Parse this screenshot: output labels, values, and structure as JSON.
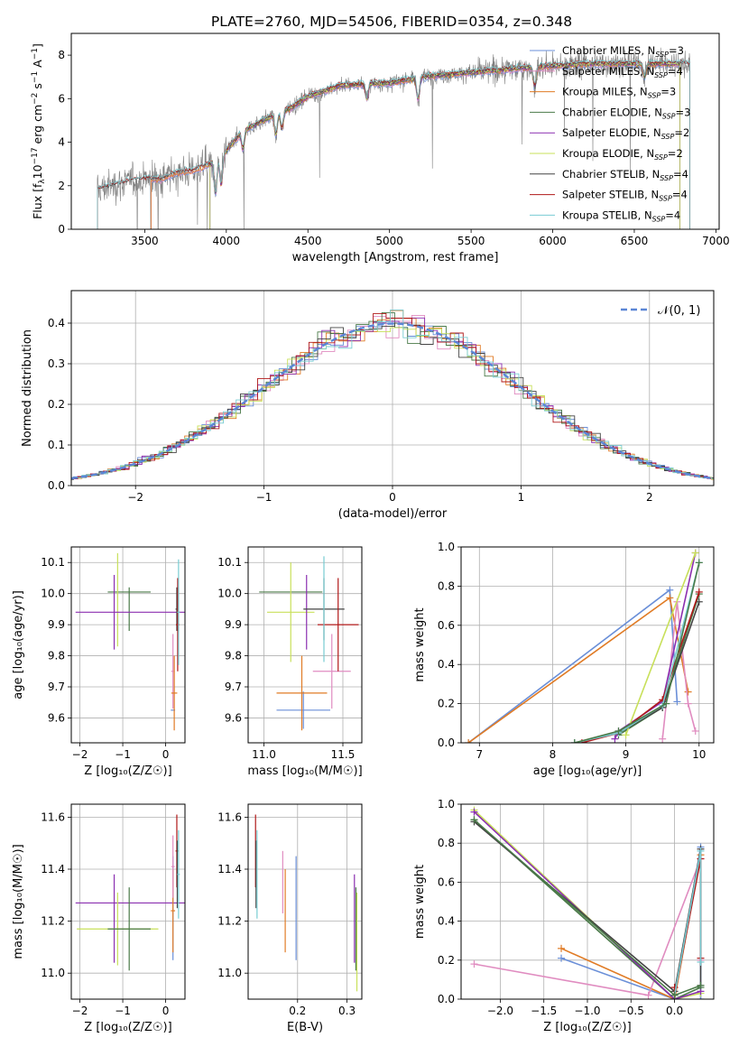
{
  "figure_title": "PLATE=2760, MJD=54506, FIBERID=0354, z=0.348",
  "colors": {
    "Chabrier MILES": "#6a8fd8",
    "Salpeter MILES": "#e08cc0",
    "Kroupa MILES": "#e07b25",
    "Chabrier ELODIE": "#4a7a48",
    "Salpeter ELODIE": "#8b2fb0",
    "Kroupa ELODIE": "#c8e05a",
    "Chabrier STELIB": "#444444",
    "Salpeter STELIB": "#b01818",
    "Kroupa STELIB": "#78ccd2",
    "data": "#808080",
    "normal": "#5b86d6"
  },
  "chart_data": [
    {
      "id": "spectrum",
      "type": "line",
      "title": "PLATE=2760, MJD=54506, FIBERID=0354, z=0.348",
      "xlabel": "wavelength [Angstrom, rest frame]",
      "ylabel": "Flux [f$_\\lambda 10^{-17}$ erg cm$^{-2}$ s$^{-1}$ A$^{-1}$]",
      "ylabel_parts": {
        "a": "Flux [f",
        "b": "λ",
        "c": "10",
        "d": "−17",
        "e": " erg cm",
        "f": "−2",
        "g": " s",
        "h": "−1",
        "i": " A",
        "j": "−1",
        "k": "]"
      },
      "xlim": [
        3050,
        7020
      ],
      "ylim": [
        0,
        9
      ],
      "xticks": [
        3500,
        4000,
        4500,
        5000,
        5500,
        6000,
        6500,
        7000
      ],
      "xtick_labels": [
        "3500",
        "4000",
        "4500",
        "5000",
        "5500",
        "6000",
        "6500",
        "7000"
      ],
      "yticks": [
        0,
        2,
        4,
        6,
        8
      ],
      "ytick_labels": [
        "0",
        "2",
        "4",
        "6",
        "8"
      ],
      "legend": [
        {
          "name": "Chabrier MILES",
          "n": "3"
        },
        {
          "name": "Salpeter MILES",
          "n": "4"
        },
        {
          "name": "Kroupa MILES",
          "n": "3"
        },
        {
          "name": "Chabrier ELODIE",
          "n": "3"
        },
        {
          "name": "Salpeter ELODIE",
          "n": "2"
        },
        {
          "name": "Kroupa ELODIE",
          "n": "2"
        },
        {
          "name": "Chabrier STELIB",
          "n": "4"
        },
        {
          "name": "Salpeter STELIB",
          "n": "4"
        },
        {
          "name": "Kroupa STELIB",
          "n": "4"
        }
      ],
      "legend_sub": "SSP",
      "legend_prefix": "N",
      "legend_position": "upper right",
      "data_range": [
        3210,
        6840
      ],
      "model_ranges": {
        "MILES": [
          3540,
          6780
        ],
        "ELODIE": [
          3900,
          6780
        ],
        "STELIB": [
          3210,
          6840
        ]
      },
      "continuum_anchors": {
        "x": [
          3210,
          3300,
          3400,
          3500,
          3600,
          3700,
          3800,
          3900,
          4000,
          4100,
          4200,
          4300,
          4400,
          4500,
          4700,
          4900,
          5000,
          5200,
          5500,
          5800,
          6000,
          6200,
          6500,
          6800
        ],
        "y": [
          1.8,
          2.0,
          2.2,
          2.3,
          2.3,
          2.6,
          2.7,
          3.0,
          3.6,
          4.5,
          4.9,
          5.3,
          5.6,
          6.1,
          6.6,
          6.7,
          6.7,
          7.0,
          7.2,
          7.4,
          7.5,
          7.6,
          7.6,
          7.6
        ]
      }
    },
    {
      "id": "residuals",
      "type": "line",
      "xlabel": "(data-model)/error",
      "ylabel": "Normed distribution",
      "xlim": [
        -2.5,
        2.5
      ],
      "ylim": [
        0,
        0.48
      ],
      "xticks": [
        -2,
        -1,
        0,
        1,
        2
      ],
      "xtick_labels": [
        "−2",
        "−1",
        "0",
        "1",
        "2"
      ],
      "yticks": [
        0,
        0.1,
        0.2,
        0.3,
        0.4
      ],
      "ytick_labels": [
        "0.0",
        "0.1",
        "0.2",
        "0.3",
        "0.4"
      ],
      "grid": true,
      "legend": [
        {
          "name": "𝒩(0, 1)",
          "style": "dashed"
        }
      ],
      "legend_position": "upper right",
      "bin_width": 0.1
    },
    {
      "id": "age_vs_Z",
      "type": "scatter",
      "xlabel": "Z [log₁₀(Z/Z☉)]",
      "ylabel": "age  [log₁₀(age/yr)]",
      "xlim": [
        -2.2,
        0.45
      ],
      "ylim": [
        9.52,
        10.15
      ],
      "xticks": [
        -2,
        -1,
        0
      ],
      "xtick_labels": [
        "−2",
        "−1",
        "0"
      ],
      "yticks": [
        9.6,
        9.7,
        9.8,
        9.9,
        10.0,
        10.1
      ],
      "ytick_labels": [
        "9.6",
        "9.7",
        "9.8",
        "9.9",
        "10.0",
        "10.1"
      ],
      "grid": true,
      "points": [
        {
          "s": "Chabrier MILES",
          "x": 0.17,
          "y": 9.625,
          "xe": 0.05,
          "ye": 0.0
        },
        {
          "s": "Salpeter MILES",
          "x": 0.17,
          "y": 9.75,
          "xe": 0.04,
          "ye": 0.12
        },
        {
          "s": "Kroupa MILES",
          "x": 0.2,
          "y": 9.68,
          "xe": 0.07,
          "ye": 0.12
        },
        {
          "s": "Chabrier ELODIE",
          "x": -0.85,
          "y": 10.005,
          "xe": 0.5,
          "ye": 0.0
        },
        {
          "s": "Chabrier ELODIE",
          "x": -0.85,
          "y": 9.95,
          "xe": 0.0,
          "ye": 0.07
        },
        {
          "s": "Salpeter ELODIE",
          "x": -1.2,
          "y": 9.94,
          "xe": 0.0,
          "ye": 0.12
        },
        {
          "s": "Kroupa ELODIE",
          "x": -1.12,
          "y": 9.98,
          "xe": 0.0,
          "ye": 0.15
        },
        {
          "s": "Salpeter ELODIE",
          "x": -0.8,
          "y": 9.94,
          "xe": 1.3,
          "ye": 0.0
        },
        {
          "s": "Chabrier STELIB",
          "x": 0.26,
          "y": 9.95,
          "xe": 0.03,
          "ye": 0.07
        },
        {
          "s": "Salpeter STELIB",
          "x": 0.28,
          "y": 9.9,
          "xe": 0.04,
          "ye": 0.15
        },
        {
          "s": "Kroupa STELIB",
          "x": 0.3,
          "y": 9.94,
          "xe": 0.03,
          "ye": 0.17
        }
      ]
    },
    {
      "id": "age_vs_mass",
      "type": "scatter",
      "xlabel": "mass [log₁₀(M/M☉)]",
      "xlim": [
        10.9,
        11.62
      ],
      "ylim": [
        9.52,
        10.15
      ],
      "xticks": [
        11.0,
        11.5
      ],
      "xtick_labels": [
        "11.0",
        "11.5"
      ],
      "yticks": [
        9.6,
        9.7,
        9.8,
        9.9,
        10.0,
        10.1
      ],
      "ytick_labels": [
        "9.6",
        "9.7",
        "9.8",
        "9.9",
        "10.0",
        "10.1"
      ],
      "grid": true,
      "points": [
        {
          "s": "Chabrier MILES",
          "x": 11.25,
          "y": 9.625,
          "xe": 0.17,
          "ye": 0.06
        },
        {
          "s": "Salpeter MILES",
          "x": 11.43,
          "y": 9.75,
          "xe": 0.12,
          "ye": 0.12
        },
        {
          "s": "Kroupa MILES",
          "x": 11.24,
          "y": 9.68,
          "xe": 0.16,
          "ye": 0.12
        },
        {
          "s": "Chabrier ELODIE",
          "x": 11.17,
          "y": 10.005,
          "xe": 0.2,
          "ye": 0.0
        },
        {
          "s": "Kroupa ELODIE",
          "x": 11.17,
          "y": 9.94,
          "xe": 0.15,
          "ye": 0.16
        },
        {
          "s": "Salpeter ELODIE",
          "x": 11.27,
          "y": 9.94,
          "xe": 0.0,
          "ye": 0.12
        },
        {
          "s": "Chabrier STELIB",
          "x": 11.38,
          "y": 9.95,
          "xe": 0.13,
          "ye": 0.1
        },
        {
          "s": "Salpeter STELIB",
          "x": 11.47,
          "y": 9.9,
          "xe": 0.13,
          "ye": 0.15
        },
        {
          "s": "Kroupa STELIB",
          "x": 11.38,
          "y": 9.95,
          "xe": 0.0,
          "ye": 0.17
        }
      ]
    },
    {
      "id": "weight_vs_age",
      "type": "line",
      "xlabel": "age  [log₁₀(age/yr)]",
      "ylabel": "mass weight",
      "xlim": [
        6.75,
        10.2
      ],
      "ylim": [
        0,
        1.0
      ],
      "xticks": [
        7,
        8,
        9,
        10
      ],
      "xtick_labels": [
        "7",
        "8",
        "9",
        "10"
      ],
      "yticks": [
        0,
        0.2,
        0.4,
        0.6,
        0.8,
        1.0
      ],
      "ytick_labels": [
        "0.0",
        "0.2",
        "0.4",
        "0.6",
        "0.8",
        "1.0"
      ],
      "grid": true,
      "series": [
        {
          "s": "Chabrier MILES",
          "x": [
            6.85,
            9.6,
            9.7
          ],
          "y": [
            0.0,
            0.78,
            0.21
          ]
        },
        {
          "s": "Kroupa MILES",
          "x": [
            6.85,
            9.6,
            9.85
          ],
          "y": [
            0.0,
            0.74,
            0.26
          ]
        },
        {
          "s": "Salpeter MILES",
          "x": [
            9.5,
            9.7,
            9.85,
            9.95
          ],
          "y": [
            0.02,
            0.72,
            0.2,
            0.06
          ]
        },
        {
          "s": "Chabrier ELODIE",
          "x": [
            8.9,
            9.5,
            10.0
          ],
          "y": [
            0.04,
            0.18,
            0.76
          ]
        },
        {
          "s": "Salpeter ELODIE",
          "x": [
            8.85,
            8.9,
            9.5,
            9.95
          ],
          "y": [
            0.02,
            0.06,
            0.21,
            0.97
          ]
        },
        {
          "s": "Kroupa ELODIE",
          "x": [
            9.0,
            9.95
          ],
          "y": [
            0.04,
            0.97
          ]
        },
        {
          "s": "Chabrier STELIB",
          "x": [
            8.3,
            8.9,
            9.5,
            10.0
          ],
          "y": [
            0.0,
            0.05,
            0.18,
            0.72
          ]
        },
        {
          "s": "Salpeter STELIB",
          "x": [
            8.4,
            8.9,
            9.5,
            10.0
          ],
          "y": [
            0.0,
            0.05,
            0.22,
            0.77
          ]
        },
        {
          "s": "Kroupa STELIB",
          "x": [
            8.3,
            8.9,
            9.5,
            10.0
          ],
          "y": [
            0.0,
            0.05,
            0.19,
            0.92
          ]
        },
        {
          "s": "Chabrier ELODIE",
          "x": [
            8.3,
            8.9,
            9.55,
            10.0
          ],
          "y": [
            0.0,
            0.06,
            0.2,
            0.92
          ]
        }
      ]
    },
    {
      "id": "mass_vs_Z",
      "type": "scatter",
      "xlabel": "Z [log₁₀(Z/Z☉)]",
      "ylabel": "mass [log₁₀(M/M☉)]",
      "xlim": [
        -2.2,
        0.45
      ],
      "ylim": [
        10.9,
        11.65
      ],
      "xticks": [
        -2,
        -1,
        0
      ],
      "xtick_labels": [
        "−2",
        "−1",
        "0"
      ],
      "yticks": [
        11.0,
        11.2,
        11.4,
        11.6
      ],
      "ytick_labels": [
        "11.0",
        "11.2",
        "11.4",
        "11.6"
      ],
      "grid": true,
      "points": [
        {
          "s": "Salpeter ELODIE",
          "x": -0.8,
          "y": 11.27,
          "xe": 1.3,
          "ye": 0.0
        },
        {
          "s": "Salpeter ELODIE",
          "x": -1.2,
          "y": 11.21,
          "xe": 0.0,
          "ye": 0.17
        },
        {
          "s": "Kroupa ELODIE",
          "x": -1.12,
          "y": 11.17,
          "xe": 0.95,
          "ye": 0.14
        },
        {
          "s": "Chabrier ELODIE",
          "x": -0.85,
          "y": 11.17,
          "xe": 0.5,
          "ye": 0.16
        },
        {
          "s": "Chabrier MILES",
          "x": 0.17,
          "y": 11.25,
          "xe": 0.0,
          "ye": 0.2
        },
        {
          "s": "Kroupa MILES",
          "x": 0.17,
          "y": 11.24,
          "xe": 0.05,
          "ye": 0.16
        },
        {
          "s": "Salpeter MILES",
          "x": 0.17,
          "y": 11.41,
          "xe": 0.04,
          "ye": 0.12
        },
        {
          "s": "Salpeter STELIB",
          "x": 0.26,
          "y": 11.47,
          "xe": 0.03,
          "ye": 0.14
        },
        {
          "s": "Chabrier STELIB",
          "x": 0.27,
          "y": 11.38,
          "xe": 0.0,
          "ye": 0.13
        },
        {
          "s": "Kroupa STELIB",
          "x": 0.3,
          "y": 11.38,
          "xe": 0.03,
          "ye": 0.17
        }
      ]
    },
    {
      "id": "mass_vs_ebv",
      "type": "scatter",
      "xlabel": "E(B-V)",
      "xlim": [
        0.1,
        0.33
      ],
      "ylim": [
        10.9,
        11.65
      ],
      "xticks": [
        0.2,
        0.3
      ],
      "xtick_labels": [
        "0.2",
        "0.3"
      ],
      "yticks": [
        11.0,
        11.2,
        11.4,
        11.6
      ],
      "ytick_labels": [
        "11.0",
        "11.2",
        "11.4",
        "11.6"
      ],
      "grid": true,
      "points": [
        {
          "s": "Salpeter STELIB",
          "x": 0.115,
          "y": 11.47,
          "xe": 0.0,
          "ye": 0.14
        },
        {
          "s": "Chabrier STELIB",
          "x": 0.116,
          "y": 11.38,
          "xe": 0.0,
          "ye": 0.13
        },
        {
          "s": "Kroupa STELIB",
          "x": 0.118,
          "y": 11.38,
          "xe": 0.0,
          "ye": 0.17
        },
        {
          "s": "Salpeter MILES",
          "x": 0.17,
          "y": 11.35,
          "xe": 0.0,
          "ye": 0.12
        },
        {
          "s": "Kroupa MILES",
          "x": 0.175,
          "y": 11.24,
          "xe": 0.0,
          "ye": 0.16
        },
        {
          "s": "Chabrier MILES",
          "x": 0.197,
          "y": 11.25,
          "xe": 0.0,
          "ye": 0.2
        },
        {
          "s": "Salpeter ELODIE",
          "x": 0.315,
          "y": 11.21,
          "xe": 0.0,
          "ye": 0.17
        },
        {
          "s": "Kroupa ELODIE",
          "x": 0.32,
          "y": 11.12,
          "xe": 0.0,
          "ye": 0.19
        },
        {
          "s": "Chabrier ELODIE",
          "x": 0.318,
          "y": 11.17,
          "xe": 0.0,
          "ye": 0.16
        }
      ]
    },
    {
      "id": "weight_vs_Z",
      "type": "line",
      "xlabel": "Z [log₁₀(Z/Z☉)]",
      "ylabel": "mass weight",
      "xlim": [
        -2.45,
        0.45
      ],
      "ylim": [
        0,
        1.0
      ],
      "xticks": [
        -2.0,
        -1.5,
        -1.0,
        -0.5,
        0.0
      ],
      "xtick_labels": [
        "−2.0",
        "−1.5",
        "−1.0",
        "−0.5",
        "0.0"
      ],
      "yticks": [
        0,
        0.2,
        0.4,
        0.6,
        0.8,
        1.0
      ],
      "ytick_labels": [
        "0.0",
        "0.2",
        "0.4",
        "0.6",
        "0.8",
        "1.0"
      ],
      "grid": true,
      "series": [
        {
          "s": "Chabrier MILES",
          "x": [
            -1.3,
            0.0,
            0.3,
            0.3
          ],
          "y": [
            0.21,
            0.0,
            0.78,
            0.0
          ]
        },
        {
          "s": "Kroupa MILES",
          "x": [
            -1.3,
            0.0,
            0.3
          ],
          "y": [
            0.26,
            0.0,
            0.74
          ]
        },
        {
          "s": "Salpeter MILES",
          "x": [
            -2.3,
            -0.3,
            0.3,
            0.3
          ],
          "y": [
            0.18,
            0.02,
            0.72,
            0.2
          ]
        },
        {
          "s": "Kroupa ELODIE",
          "x": [
            -2.3,
            0.0,
            0.3
          ],
          "y": [
            0.97,
            0.0,
            0.03
          ]
        },
        {
          "s": "Chabrier ELODIE",
          "x": [
            -2.3,
            0.0,
            0.3
          ],
          "y": [
            0.92,
            0.0,
            0.06
          ]
        },
        {
          "s": "Salpeter ELODIE",
          "x": [
            -2.3,
            0.0,
            0.3
          ],
          "y": [
            0.96,
            0.0,
            0.04
          ]
        },
        {
          "s": "Chabrier STELIB",
          "x": [
            -2.3,
            0.0,
            0.3,
            0.3
          ],
          "y": [
            0.91,
            0.04,
            0.77,
            0.07
          ]
        },
        {
          "s": "Salpeter STELIB",
          "x": [
            0.0,
            0.0,
            0.3,
            0.3
          ],
          "y": [
            0.06,
            0.02,
            0.72,
            0.21
          ]
        },
        {
          "s": "Kroupa STELIB",
          "x": [
            0.0,
            0.3,
            0.3
          ],
          "y": [
            0.02,
            0.76,
            0.19
          ]
        },
        {
          "s": "Chabrier ELODIE",
          "x": [
            -2.3,
            0.0,
            0.3
          ],
          "y": [
            0.92,
            0.02,
            0.07
          ]
        }
      ]
    }
  ]
}
